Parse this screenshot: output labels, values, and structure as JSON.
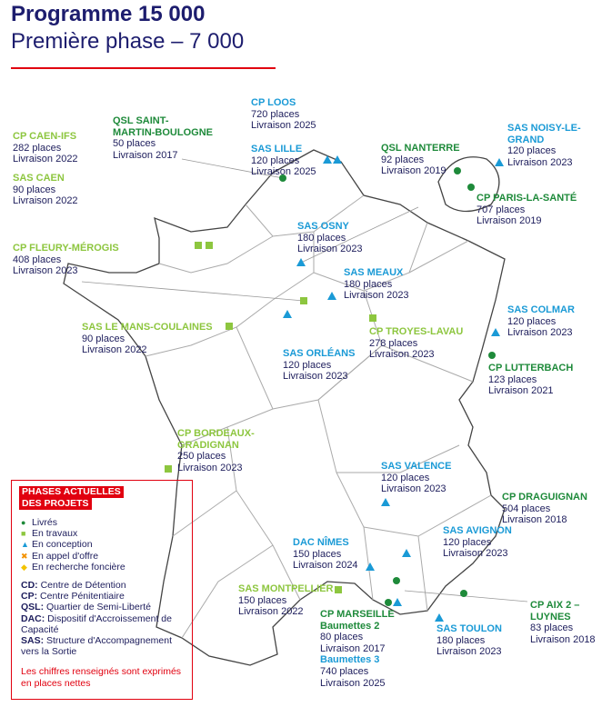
{
  "header": {
    "title": "Programme 15 000",
    "subtitle": "Première phase – 7 000"
  },
  "sites": [
    {
      "name": [
        "CP CAEN-IFS"
      ],
      "color": "#8dc63f",
      "lines": [
        "282 places",
        "Livraison 2022"
      ]
    },
    {
      "name": [
        "SAS CAEN"
      ],
      "color": "#8dc63f",
      "lines": [
        "90 places",
        "Livraison 2022"
      ]
    },
    {
      "name": [
        "QSL SAINT-",
        "MARTIN-BOULOGNE"
      ],
      "color": "#1e8a3a",
      "lines": [
        "50 places",
        "Livraison 2017"
      ]
    },
    {
      "name": [
        "CP LOOS"
      ],
      "color": "#1a9ad6",
      "lines": [
        "720 places",
        "Livraison 2025"
      ]
    },
    {
      "name": [
        "SAS LILLE"
      ],
      "color": "#1a9ad6",
      "lines": [
        "120 places",
        "Livraison 2025"
      ]
    },
    {
      "name": [
        "QSL NANTERRE"
      ],
      "color": "#1e8a3a",
      "lines": [
        "92 places",
        "Livraison 2019"
      ]
    },
    {
      "name": [
        "SAS NOISY-LE-",
        "GRAND"
      ],
      "color": "#1a9ad6",
      "lines": [
        "120 places",
        "Livraison 2023"
      ]
    },
    {
      "name": [
        "CP PARIS-LA-SANTÉ"
      ],
      "color": "#1e8a3a",
      "lines": [
        "707 places",
        "Livraison 2019"
      ]
    },
    {
      "name": [
        "CP FLEURY-MÉROGIS"
      ],
      "color": "#8dc63f",
      "lines": [
        "408 places",
        "Livraison 2023"
      ]
    },
    {
      "name": [
        "SAS OSNY"
      ],
      "color": "#1a9ad6",
      "lines": [
        "180 places",
        "Livraison 2023"
      ]
    },
    {
      "name": [
        "SAS MEAUX"
      ],
      "color": "#1a9ad6",
      "lines": [
        "180 places",
        "Livraison 2023"
      ]
    },
    {
      "name": [
        "SAS COLMAR"
      ],
      "color": "#1a9ad6",
      "lines": [
        "120 places",
        "Livraison 2023"
      ]
    },
    {
      "name": [
        "SAS LE MANS-COULAINES"
      ],
      "color": "#8dc63f",
      "lines": [
        "90 places",
        "Livraison 2022"
      ]
    },
    {
      "name": [
        "CP TROYES-LAVAU"
      ],
      "color": "#8dc63f",
      "lines": [
        "278 places",
        "Livraison 2023"
      ]
    },
    {
      "name": [
        "SAS ORLÉANS"
      ],
      "color": "#1a9ad6",
      "lines": [
        "120 places",
        "Livraison 2023"
      ]
    },
    {
      "name": [
        "CP LUTTERBACH"
      ],
      "color": "#1e8a3a",
      "lines": [
        "123 places",
        "Livraison 2021"
      ]
    },
    {
      "name": [
        "CP BORDEAUX-",
        "GRADIGNAN"
      ],
      "color": "#8dc63f",
      "lines": [
        "250 places",
        "Livraison 2023"
      ]
    },
    {
      "name": [
        "SAS VALENCE"
      ],
      "color": "#1a9ad6",
      "lines": [
        "120 places",
        "Livraison 2023"
      ]
    },
    {
      "name": [
        "CP DRAGUIGNAN"
      ],
      "color": "#1e8a3a",
      "lines": [
        "504 places",
        "Livraison 2018"
      ]
    },
    {
      "name": [
        "SAS AVIGNON"
      ],
      "color": "#1a9ad6",
      "lines": [
        "120 places",
        "Livraison 2023"
      ]
    },
    {
      "name": [
        "DAC NÎMES"
      ],
      "color": "#1a9ad6",
      "lines": [
        "150 places",
        "Livraison 2024"
      ]
    },
    {
      "name": [
        "SAS MONTPELLIER"
      ],
      "color": "#8dc63f",
      "lines": [
        "150 places",
        "Livraison 2022"
      ]
    },
    {
      "name": [
        "CP MARSEILLE"
      ],
      "color": "#1e8a3a",
      "lines": [
        {
          "text": "Baumettes 2",
          "color": "#1e8a3a"
        },
        "80 places",
        "Livraison 2017",
        {
          "text": "Baumettes 3",
          "color": "#1a9ad6"
        },
        "740 places",
        "Livraison 2025"
      ]
    },
    {
      "name": [
        "CP AIX 2 –",
        "LUYNES"
      ],
      "color": "#1e8a3a",
      "lines": [
        "83 places",
        "Livraison 2018"
      ]
    },
    {
      "name": [
        "SAS TOULON"
      ],
      "color": "#1a9ad6",
      "lines": [
        "180 places",
        "Livraison 2023"
      ]
    }
  ],
  "legend": {
    "title": [
      "PHASES ACTUELLES",
      "DES PROJETS"
    ],
    "items": [
      "Livrés",
      "En travaux",
      "En conception",
      "En appel d'offre",
      "En recherche foncière"
    ],
    "abbreviations": [
      {
        "abbr": "CD:",
        "text": "Centre de Détention"
      },
      {
        "abbr": "CP:",
        "text": "Centre Pénitentiaire"
      },
      {
        "abbr": "QSL:",
        "text": "Quartier de Semi-Liberté"
      },
      {
        "abbr": "DAC:",
        "text": "Dispositif d'Accroissement de Capacité"
      },
      {
        "abbr": "SAS:",
        "text": "Structure d'Accompagnement vers la Sortie"
      }
    ],
    "note": "Les chiffres renseignés sont exprimés en places nettes"
  }
}
